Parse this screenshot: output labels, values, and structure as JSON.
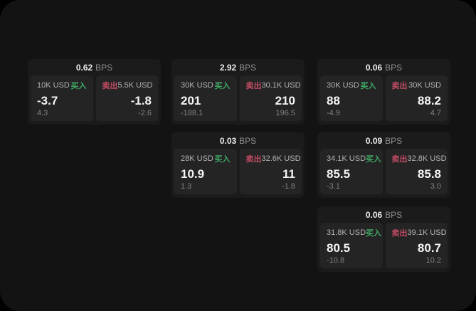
{
  "colors": {
    "background": "#000000",
    "window": "#131313",
    "card": "#1b1b1b",
    "panel": "#242424",
    "buy": "#3fa865",
    "sell": "#c24b63"
  },
  "labels": {
    "bps": "BPS",
    "buy": "买入",
    "sell": "卖出"
  },
  "cards": [
    {
      "row": 1,
      "col": 1,
      "bps": "0.62",
      "buy": {
        "amount": "10K USD",
        "value": "-3.7",
        "sub": "4.3"
      },
      "sell": {
        "amount": "5.5K USD",
        "value": "-1.8",
        "sub": "-2.6"
      }
    },
    {
      "row": 1,
      "col": 2,
      "bps": "2.92",
      "buy": {
        "amount": "30K USD",
        "value": "201",
        "sub": "-188.1"
      },
      "sell": {
        "amount": "30.1K USD",
        "value": "210",
        "sub": "196.5"
      }
    },
    {
      "row": 1,
      "col": 3,
      "bps": "0.06",
      "buy": {
        "amount": "30K USD",
        "value": "88",
        "sub": "-4.9"
      },
      "sell": {
        "amount": "30K USD",
        "value": "88.2",
        "sub": "4.7"
      }
    },
    {
      "row": 2,
      "col": 2,
      "bps": "0.03",
      "buy": {
        "amount": "28K USD",
        "value": "10.9",
        "sub": "1.3"
      },
      "sell": {
        "amount": "32.6K USD",
        "value": "11",
        "sub": "-1.8"
      }
    },
    {
      "row": 2,
      "col": 3,
      "bps": "0.09",
      "buy": {
        "amount": "34.1K USD",
        "value": "85.5",
        "sub": "-3.1"
      },
      "sell": {
        "amount": "32.8K USD",
        "value": "85.8",
        "sub": "3.0"
      }
    },
    {
      "row": 3,
      "col": 3,
      "bps": "0.06",
      "buy": {
        "amount": "31.8K USD",
        "value": "80.5",
        "sub": "-10.8"
      },
      "sell": {
        "amount": "39.1K USD",
        "value": "80.7",
        "sub": "10.2"
      }
    }
  ]
}
